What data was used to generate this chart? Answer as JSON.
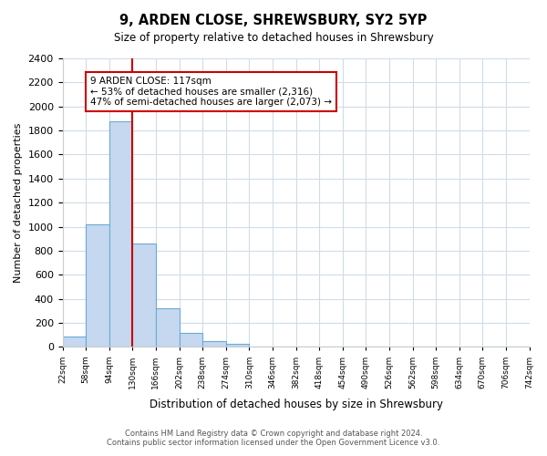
{
  "title": "9, ARDEN CLOSE, SHREWSBURY, SY2 5YP",
  "subtitle": "Size of property relative to detached houses in Shrewsbury",
  "bar_heights": [
    90,
    1020,
    1880,
    860,
    320,
    120,
    50,
    30,
    0,
    0,
    0,
    0,
    0,
    0,
    0,
    0,
    0,
    0,
    0,
    0
  ],
  "bin_labels": [
    "22sqm",
    "58sqm",
    "94sqm",
    "130sqm",
    "166sqm",
    "202sqm",
    "238sqm",
    "274sqm",
    "310sqm",
    "346sqm",
    "382sqm",
    "418sqm",
    "454sqm",
    "490sqm",
    "526sqm",
    "562sqm",
    "598sqm",
    "634sqm",
    "670sqm",
    "706sqm",
    "742sqm"
  ],
  "bar_color": "#c5d8f0",
  "bar_edge_color": "#6aaad4",
  "vline_x": 3,
  "vline_color": "#cc0000",
  "annotation_title": "9 ARDEN CLOSE: 117sqm",
  "annotation_line1": "← 53% of detached houses are smaller (2,316)",
  "annotation_line2": "47% of semi-detached houses are larger (2,073) →",
  "annotation_box_color": "#ffffff",
  "annotation_box_edge": "#cc0000",
  "ylabel": "Number of detached properties",
  "xlabel": "Distribution of detached houses by size in Shrewsbury",
  "ylim": [
    0,
    2400
  ],
  "yticks": [
    0,
    200,
    400,
    600,
    800,
    1000,
    1200,
    1400,
    1600,
    1800,
    2000,
    2200,
    2400
  ],
  "footer_line1": "Contains HM Land Registry data © Crown copyright and database right 2024.",
  "footer_line2": "Contains public sector information licensed under the Open Government Licence v3.0.",
  "bg_color": "#ffffff",
  "grid_color": "#d0dce8"
}
